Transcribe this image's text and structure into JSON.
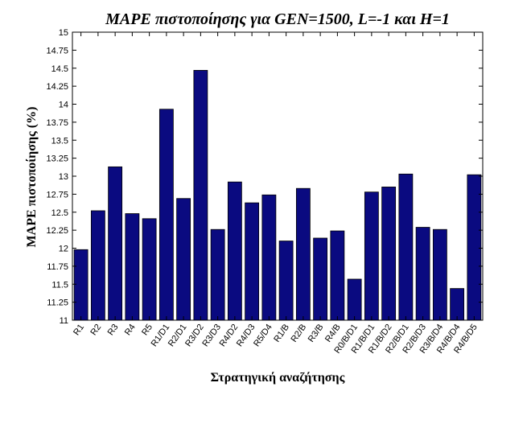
{
  "chart_data": {
    "type": "bar",
    "title": "MAPE πιστοποίησης για GEN=1500, L=-1 και H=1",
    "xlabel": "Στρατηγική αναζήτησης",
    "ylabel": "MAPE πιστοποίησης (%)",
    "ylim": [
      11,
      15
    ],
    "yticks": [
      "11",
      "11.25",
      "11.5",
      "11.75",
      "12",
      "12.25",
      "12.5",
      "12.75",
      "13",
      "13.25",
      "13.5",
      "13.75",
      "14",
      "14.25",
      "14.5",
      "14.75",
      "15"
    ],
    "categories": [
      "R1",
      "R2",
      "R3",
      "R4",
      "R5",
      "R1/D1",
      "R2/D1",
      "R3/D2",
      "R3/D3",
      "R4/D2",
      "R4/D3",
      "R5/D4",
      "R1/B",
      "R2/B",
      "R3/B",
      "R4/B",
      "R0/B/D1",
      "R1/B/D1",
      "R1/B/D2",
      "R2/B/D1",
      "R2/B/D3",
      "R3/B/D4",
      "R4/B/D4",
      "R4/B/D5"
    ],
    "values": [
      11.98,
      12.52,
      13.13,
      12.48,
      12.41,
      13.93,
      12.69,
      14.47,
      12.26,
      12.92,
      12.63,
      12.74,
      12.1,
      12.83,
      12.14,
      12.24,
      11.57,
      12.78,
      12.85,
      13.03,
      12.29,
      12.26,
      11.44,
      13.02
    ],
    "grid": false,
    "bar_color": "#0a0a80"
  }
}
